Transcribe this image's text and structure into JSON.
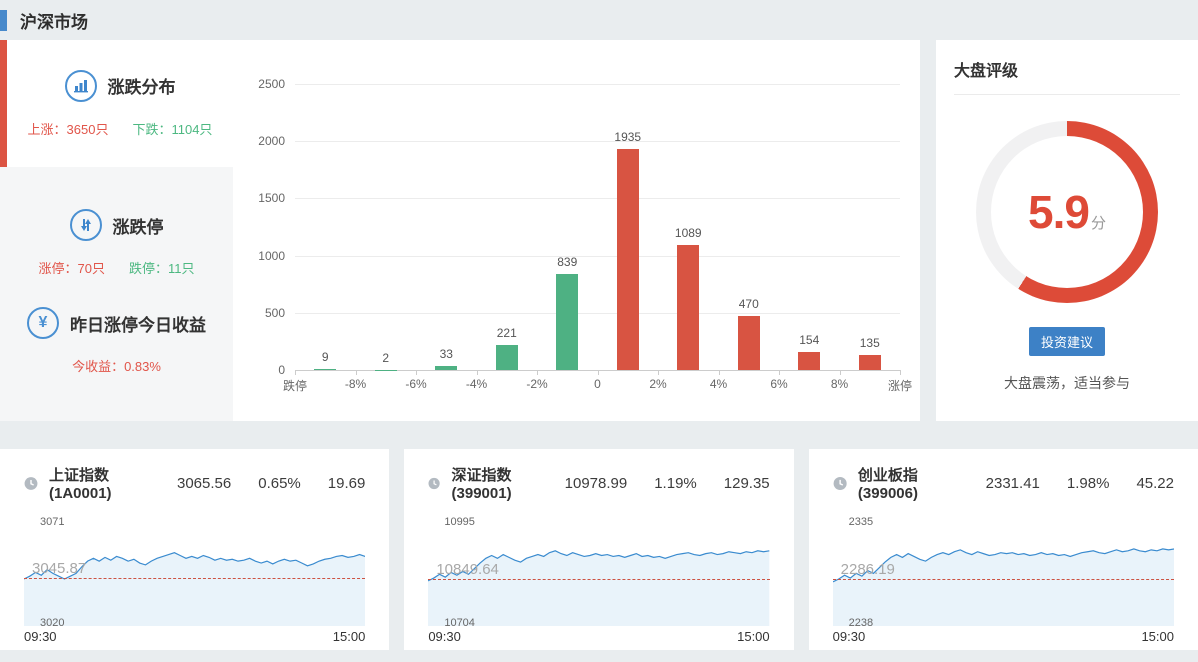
{
  "page": {
    "title": "沪深市场"
  },
  "stats_panel": {
    "sections": [
      {
        "icon": "bar-chart-icon",
        "title": "涨跌分布",
        "items": [
          {
            "label": "上涨：3650只",
            "color": "#e1554a"
          },
          {
            "label": "下跌：1104只",
            "color": "#4cb881"
          }
        ]
      },
      {
        "icon": "up-down-arrows-icon",
        "title": "涨跌停",
        "items": [
          {
            "label": "涨停：70只",
            "color": "#e1554a"
          },
          {
            "label": "跌停：11只",
            "color": "#4cb881"
          }
        ]
      },
      {
        "icon": "yen-icon",
        "title": "昨日涨停今日收益",
        "items": [
          {
            "label": "今收益：0.83%",
            "color": "#e1554a"
          }
        ]
      }
    ]
  },
  "rating_panel": {
    "title": "大盘评级",
    "score": "5.9",
    "score_unit": "分",
    "score_pct": 59,
    "ring_color": "#dd4b38",
    "track_color": "#f1f1f2",
    "button_label": "投资建议",
    "button_color": "#3d81c6",
    "advice": "大盘震荡，适当参与"
  },
  "index_cards": [
    {
      "name": "上证指数(1A0001)",
      "price": "3065.56",
      "change_pct": "0.65%",
      "change": "19.69"
    },
    {
      "name": "深证指数(399001)",
      "price": "10978.99",
      "change_pct": "1.19%",
      "change": "129.35"
    },
    {
      "name": "创业板指(399006)",
      "price": "2331.41",
      "change_pct": "1.98%",
      "change": "45.22"
    }
  ],
  "chart_data": [
    {
      "type": "bar",
      "title": "涨跌分布",
      "bin_edges": [
        "跌停",
        "-8%",
        "-6%",
        "-4%",
        "-2%",
        "0",
        "2%",
        "4%",
        "6%",
        "8%",
        "涨停"
      ],
      "values": [
        9,
        2,
        33,
        221,
        839,
        1935,
        1089,
        470,
        154,
        135
      ],
      "bar_colors": [
        "#4eb183",
        "#4eb183",
        "#4eb183",
        "#4eb183",
        "#4eb183",
        "#d85442",
        "#d85442",
        "#d85442",
        "#d85442",
        "#d85442"
      ],
      "yticks": [
        2500,
        2000,
        1500,
        1000,
        500,
        0
      ],
      "ylim": [
        0,
        2500
      ],
      "grid": true,
      "legend": "none",
      "up_color": "#d85442",
      "down_color": "#4eb183"
    },
    {
      "type": "line",
      "name": "上证指数(1A0001)",
      "x_labels": [
        "09:30",
        "15:00"
      ],
      "y_top_label": "3071",
      "y_bottom_label": "3020",
      "prev_close_label": "3045.87",
      "prev_close_pct_from_top": 49.3,
      "ylim": [
        3020,
        3071
      ],
      "line_color": "#3a8bcf",
      "fill_color": "#e9f3fa",
      "points_pct_from_top": [
        50,
        47,
        43,
        46,
        40,
        44,
        47,
        50,
        47,
        44,
        37,
        31,
        28,
        31,
        27,
        30,
        26,
        28,
        31,
        29,
        33,
        35,
        31,
        28,
        26,
        24,
        22,
        25,
        28,
        26,
        28,
        25,
        27,
        30,
        28,
        30,
        29,
        31,
        30,
        28,
        31,
        33,
        31,
        34,
        31,
        29,
        31,
        30,
        33,
        36,
        34,
        31,
        29,
        28,
        26,
        25,
        27,
        26,
        24,
        26
      ]
    },
    {
      "type": "line",
      "name": "深证指数(399001)",
      "x_labels": [
        "09:30",
        "15:00"
      ],
      "y_top_label": "10995",
      "y_bottom_label": "10704",
      "prev_close_label": "10849.64",
      "prev_close_pct_from_top": 50.0,
      "ylim": [
        10704,
        10995
      ],
      "line_color": "#3a8bcf",
      "fill_color": "#e9f3fa",
      "points_pct_from_top": [
        52,
        49,
        45,
        48,
        43,
        46,
        42,
        45,
        39,
        33,
        28,
        25,
        28,
        24,
        27,
        30,
        32,
        28,
        26,
        24,
        26,
        22,
        20,
        23,
        25,
        22,
        24,
        26,
        25,
        23,
        25,
        24,
        26,
        25,
        27,
        25,
        23,
        26,
        25,
        27,
        26,
        28,
        26,
        24,
        23,
        22,
        24,
        25,
        23,
        22,
        24,
        23,
        21,
        22,
        23,
        21,
        22,
        20,
        21,
        20
      ]
    },
    {
      "type": "line",
      "name": "创业板指(399006)",
      "x_labels": [
        "09:30",
        "15:00"
      ],
      "y_top_label": "2335",
      "y_bottom_label": "2238",
      "prev_close_label": "2286.19",
      "prev_close_pct_from_top": 50.3,
      "ylim": [
        2238,
        2335
      ],
      "line_color": "#3a8bcf",
      "fill_color": "#e9f3fa",
      "points_pct_from_top": [
        53,
        50,
        46,
        49,
        44,
        47,
        41,
        44,
        38,
        32,
        27,
        24,
        27,
        23,
        26,
        29,
        31,
        27,
        24,
        22,
        24,
        21,
        19,
        22,
        24,
        21,
        23,
        25,
        24,
        22,
        23,
        22,
        24,
        23,
        25,
        24,
        22,
        24,
        23,
        25,
        24,
        26,
        24,
        22,
        21,
        20,
        22,
        23,
        21,
        19,
        21,
        20,
        18,
        20,
        21,
        19,
        20,
        18,
        19,
        18
      ]
    }
  ]
}
